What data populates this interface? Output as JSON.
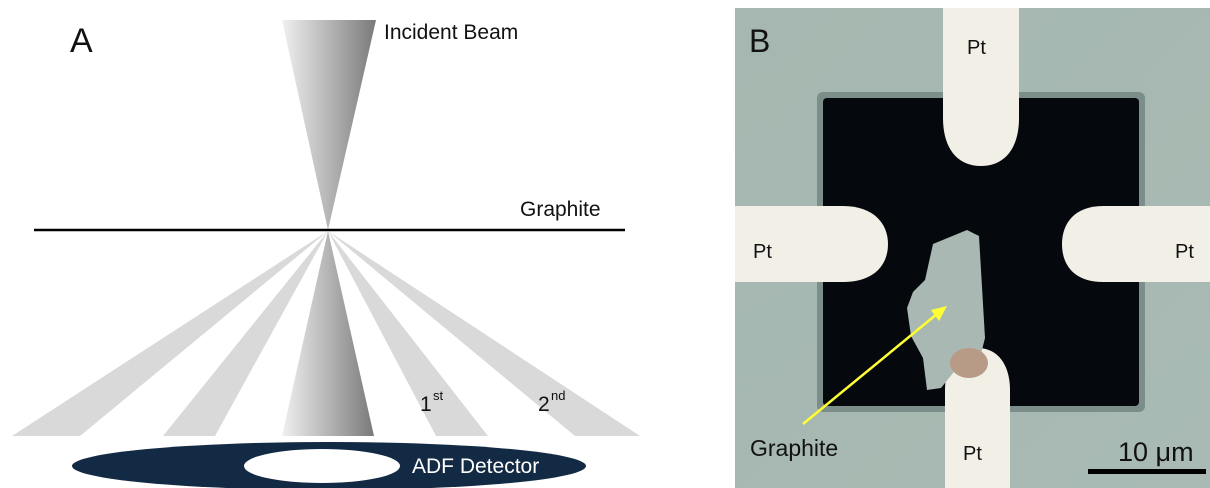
{
  "panel_a": {
    "label": "A",
    "incident_beam_label": "Incident Beam",
    "graphite_label": "Graphite",
    "first_order_label": "1",
    "first_order_sup": "st",
    "second_order_label": "2",
    "second_order_sup": "nd",
    "detector_label": "ADF Detector"
  },
  "panel_b": {
    "label": "B",
    "pt_top": "Pt",
    "pt_left": "Pt",
    "pt_right": "Pt",
    "pt_bottom": "Pt",
    "graphite_label": "Graphite",
    "scale_bar_label": "10 μm"
  },
  "colors": {
    "beam_dark": "#808080",
    "beam_light": "#ededed",
    "diffracted_beam": "#d9d9d9",
    "detector": "#132a45",
    "substrate": "#a7b9b2",
    "trench": "#05080c",
    "electrode": "#f2f0e6",
    "graphite_flake": "#a9b8b2",
    "arrow": "#ffff33"
  }
}
